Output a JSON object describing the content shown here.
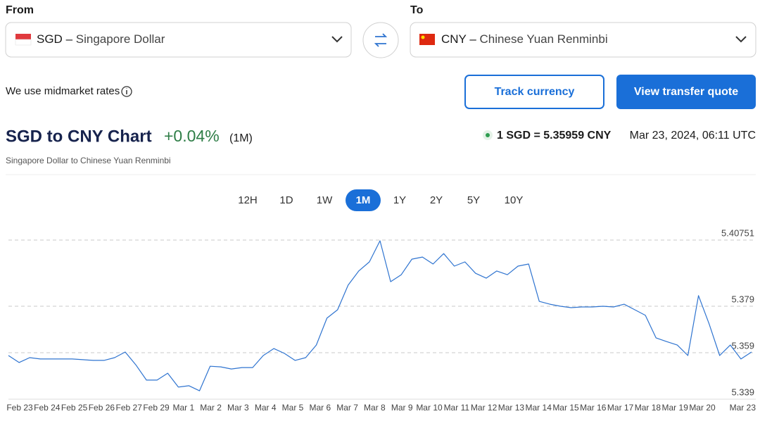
{
  "from": {
    "label": "From",
    "code": "SGD",
    "separator": "–",
    "name": "Singapore Dollar"
  },
  "to": {
    "label": "To",
    "code": "CNY",
    "separator": "–",
    "name": "Chinese Yuan Renminbi"
  },
  "midmarket_note": "We use midmarket rates",
  "buttons": {
    "track": "Track currency",
    "quote": "View transfer quote"
  },
  "header": {
    "title": "SGD to CNY Chart",
    "change": "+0.04%",
    "period": "(1M)",
    "subtitle": "Singapore Dollar to Chinese Yuan Renminbi",
    "rate": "1 SGD = 5.35959 CNY",
    "timestamp": "Mar 23, 2024, 06:11 UTC"
  },
  "ranges": [
    "12H",
    "1D",
    "1W",
    "1M",
    "1Y",
    "2Y",
    "5Y",
    "10Y"
  ],
  "selected_range": 3,
  "chart_data": {
    "type": "line",
    "color": "#2f74d0",
    "x_axis_labels": [
      "Feb 23",
      "Feb 24",
      "Feb 25",
      "Feb 26",
      "Feb 27",
      "Feb 29",
      "Mar 1",
      "Mar 2",
      "Mar 3",
      "Mar 4",
      "Mar 5",
      "Mar 6",
      "Mar 7",
      "Mar 8",
      "Mar 9",
      "Mar 10",
      "Mar 11",
      "Mar 12",
      "Mar 13",
      "Mar 14",
      "Mar 15",
      "Mar 16",
      "Mar 17",
      "Mar 18",
      "Mar 19",
      "Mar 20",
      "Mar 23"
    ],
    "values": [
      5.3578,
      5.3548,
      5.3569,
      5.3563,
      5.3563,
      5.3563,
      5.3563,
      5.356,
      5.3557,
      5.3557,
      5.3569,
      5.3593,
      5.3538,
      5.3472,
      5.3472,
      5.3502,
      5.3442,
      5.3448,
      5.3426,
      5.3532,
      5.3529,
      5.352,
      5.3526,
      5.3526,
      5.3578,
      5.3608,
      5.3587,
      5.3557,
      5.3569,
      5.3623,
      5.3739,
      5.3775,
      5.3881,
      5.3942,
      5.3981,
      5.4072,
      5.3896,
      5.3926,
      5.3993,
      5.4002,
      5.3972,
      5.4017,
      5.3963,
      5.3981,
      5.3932,
      5.3911,
      5.3942,
      5.3926,
      5.3963,
      5.3972,
      5.3811,
      5.3799,
      5.379,
      5.3784,
      5.3787,
      5.3787,
      5.379,
      5.3787,
      5.3799,
      5.3775,
      5.3751,
      5.3654,
      5.3638,
      5.3623,
      5.3578,
      5.3836,
      5.3714,
      5.3578,
      5.3623,
      5.3563,
      5.3593
    ],
    "ylim": [
      5.339,
      5.40751
    ],
    "yticks": [
      5.339,
      5.359,
      5.379,
      5.40751
    ],
    "grid": true
  }
}
